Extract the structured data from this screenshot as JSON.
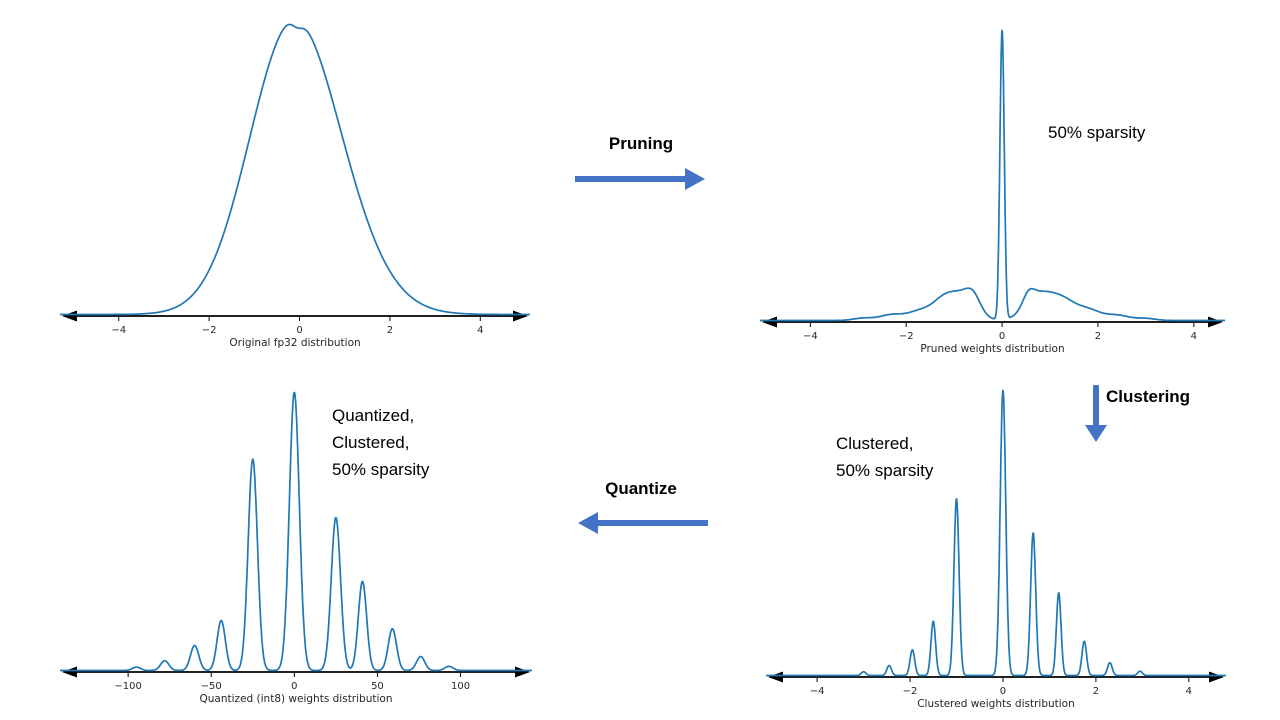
{
  "colors": {
    "curve": "#1f77b4",
    "arrow": "#4472c4",
    "axis": "#000000",
    "tick_text": "#262626",
    "background": "#ffffff"
  },
  "flow": {
    "pruning_label": "Pruning",
    "clustering_label": "Clustering",
    "quantize_label": "Quantize"
  },
  "annotations": {
    "pruned": "50% sparsity",
    "clustered": "Clustered,\n50% sparsity",
    "quantized": "Quantized,\nClustered,\n50% sparsity"
  },
  "chart_data": [
    {
      "id": "original-fp32",
      "type": "line",
      "title": "Original fp32 distribution",
      "xlabel": "Original fp32 distribution",
      "ylabel": "",
      "x_domain": [
        -5.3,
        5.1
      ],
      "ticks": [
        {
          "v": -4,
          "label": "−4"
        },
        {
          "v": -2,
          "label": "−2"
        },
        {
          "v": 0,
          "label": "0"
        },
        {
          "v": 2,
          "label": "2"
        },
        {
          "v": 4,
          "label": "4"
        }
      ],
      "components": [
        {
          "c": -0.35,
          "s": 0.9,
          "h": 1.0
        },
        {
          "c": 0.25,
          "s": 1.05,
          "h": 0.98
        },
        {
          "c": -0.05,
          "s": 0.12,
          "h": -0.05
        }
      ]
    },
    {
      "id": "pruned-weights",
      "type": "line",
      "title": "Pruned weights distribution",
      "xlabel": "Pruned weights distribution",
      "ylabel": "",
      "x_domain": [
        -5.05,
        4.65
      ],
      "ticks": [
        {
          "v": -4,
          "label": "−4"
        },
        {
          "v": -2,
          "label": "−2"
        },
        {
          "v": 0,
          "label": "0"
        },
        {
          "v": 2,
          "label": "2"
        },
        {
          "v": 4,
          "label": "4"
        }
      ],
      "components": [
        {
          "c": 0,
          "s": 0.045,
          "h": 1.0
        },
        {
          "c": -0.6,
          "s": 0.15,
          "h": 0.045
        },
        {
          "c": -0.85,
          "s": 0.28,
          "h": 0.085
        },
        {
          "c": -1.25,
          "s": 0.22,
          "h": 0.05
        },
        {
          "c": -1.7,
          "s": 0.25,
          "h": 0.032
        },
        {
          "c": -2.3,
          "s": 0.25,
          "h": 0.02
        },
        {
          "c": -2.9,
          "s": 0.2,
          "h": 0.008
        },
        {
          "c": 0.55,
          "s": 0.12,
          "h": 0.04
        },
        {
          "c": 0.8,
          "s": 0.3,
          "h": 0.09
        },
        {
          "c": 1.3,
          "s": 0.25,
          "h": 0.055
        },
        {
          "c": 1.8,
          "s": 0.25,
          "h": 0.035
        },
        {
          "c": 2.4,
          "s": 0.25,
          "h": 0.018
        },
        {
          "c": 3.0,
          "s": 0.2,
          "h": 0.007
        }
      ]
    },
    {
      "id": "clustered-weights",
      "type": "line",
      "title": "Clustered weights distribution",
      "xlabel": "Clustered weights distribution",
      "ylabel": "",
      "x_domain": [
        -5.1,
        4.8
      ],
      "ticks": [
        {
          "v": -4,
          "label": "−4"
        },
        {
          "v": -2,
          "label": "−2"
        },
        {
          "v": 0,
          "label": "0"
        },
        {
          "v": 2,
          "label": "2"
        },
        {
          "v": 4,
          "label": "4"
        }
      ],
      "components": [
        {
          "c": -3.0,
          "s": 0.05,
          "h": 0.013
        },
        {
          "c": -2.45,
          "s": 0.05,
          "h": 0.035
        },
        {
          "c": -1.95,
          "s": 0.05,
          "h": 0.09
        },
        {
          "c": -1.5,
          "s": 0.05,
          "h": 0.19
        },
        {
          "c": -1.0,
          "s": 0.055,
          "h": 0.62
        },
        {
          "c": 0,
          "s": 0.06,
          "h": 1.0
        },
        {
          "c": 0.65,
          "s": 0.055,
          "h": 0.5
        },
        {
          "c": 1.2,
          "s": 0.05,
          "h": 0.29
        },
        {
          "c": 1.75,
          "s": 0.05,
          "h": 0.12
        },
        {
          "c": 2.3,
          "s": 0.05,
          "h": 0.045
        },
        {
          "c": 2.95,
          "s": 0.05,
          "h": 0.015
        }
      ]
    },
    {
      "id": "quantized-int8-weights",
      "type": "line",
      "title": "Quantized (int8) weights distribution",
      "xlabel": "Quantized (int8) weights distribution",
      "ylabel": "",
      "x_domain": [
        -141,
        143
      ],
      "ticks": [
        {
          "v": -100,
          "label": "−100"
        },
        {
          "v": -50,
          "label": "−50"
        },
        {
          "v": 0,
          "label": "0"
        },
        {
          "v": 50,
          "label": "50"
        },
        {
          "v": 100,
          "label": "100"
        }
      ],
      "components": [
        {
          "c": -95,
          "s": 2.5,
          "h": 0.012
        },
        {
          "c": -78,
          "s": 2.5,
          "h": 0.035
        },
        {
          "c": -60,
          "s": 2.5,
          "h": 0.09
        },
        {
          "c": -44,
          "s": 2.5,
          "h": 0.18
        },
        {
          "c": -25,
          "s": 2.8,
          "h": 0.76
        },
        {
          "c": 0,
          "s": 3.0,
          "h": 1.0
        },
        {
          "c": 25,
          "s": 2.8,
          "h": 0.55
        },
        {
          "c": 41,
          "s": 2.5,
          "h": 0.32
        },
        {
          "c": 59,
          "s": 2.5,
          "h": 0.15
        },
        {
          "c": 76,
          "s": 2.5,
          "h": 0.05
        },
        {
          "c": 93,
          "s": 2.5,
          "h": 0.015
        }
      ]
    }
  ]
}
